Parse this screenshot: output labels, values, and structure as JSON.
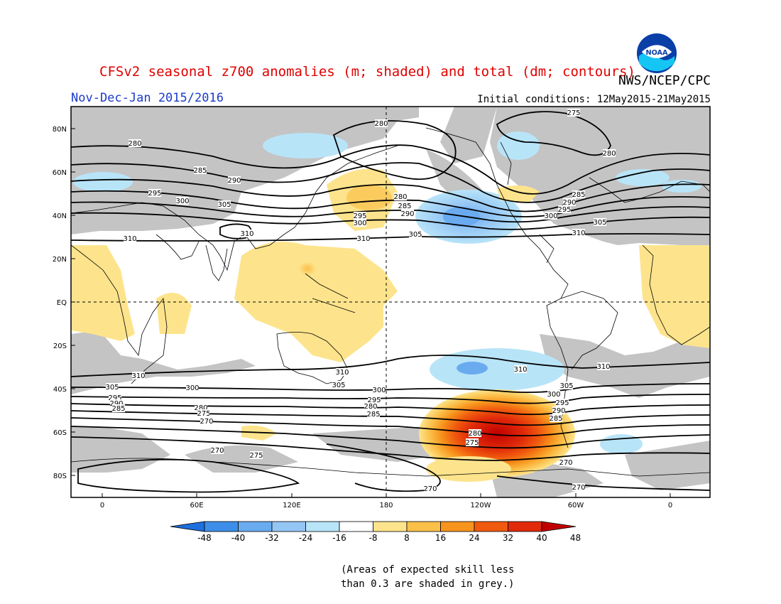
{
  "header": {
    "title": "CFSv2 seasonal z700 anomalies (m; shaded) and total (dm; contours)",
    "agency": "NWS/NCEP/CPC",
    "season": "Nov-Dec-Jan 2015/2016",
    "initial_conditions": "Initial conditions: 12May2015-21May2015",
    "logo_text": "NOAA"
  },
  "map": {
    "lat_ticks": [
      "80N",
      "60N",
      "40N",
      "20N",
      "EQ",
      "20S",
      "40S",
      "60S",
      "80S"
    ],
    "lon_ticks": [
      "0",
      "60E",
      "120E",
      "180",
      "120W",
      "60W",
      "0"
    ],
    "contour_values": [
      "280",
      "285",
      "290",
      "295",
      "300",
      "305",
      "310",
      "275",
      "270"
    ],
    "contour_labels": [
      {
        "id": "c280a",
        "text": "280"
      },
      {
        "id": "c275a",
        "text": "275"
      },
      {
        "id": "c280b",
        "text": "280"
      },
      {
        "id": "c280c",
        "text": "280"
      },
      {
        "id": "c285a",
        "text": "285"
      },
      {
        "id": "c290a",
        "text": "290"
      },
      {
        "id": "c295a",
        "text": "295"
      },
      {
        "id": "c300a",
        "text": "300"
      },
      {
        "id": "c305a",
        "text": "305"
      },
      {
        "id": "c310a",
        "text": "310"
      },
      {
        "id": "c280d",
        "text": "280"
      },
      {
        "id": "c285b",
        "text": "285"
      },
      {
        "id": "c290b",
        "text": "290"
      },
      {
        "id": "c295b",
        "text": "295"
      },
      {
        "id": "c300b",
        "text": "300"
      },
      {
        "id": "c305b",
        "text": "305"
      },
      {
        "id": "c310b",
        "text": "310"
      },
      {
        "id": "c310c",
        "text": "310"
      },
      {
        "id": "c285c",
        "text": "285"
      },
      {
        "id": "c290c",
        "text": "290"
      },
      {
        "id": "c295c",
        "text": "295"
      },
      {
        "id": "c300c",
        "text": "300"
      },
      {
        "id": "c305c",
        "text": "305"
      },
      {
        "id": "c310d",
        "text": "310"
      },
      {
        "id": "c310e",
        "text": "310"
      },
      {
        "id": "c310f",
        "text": "310"
      },
      {
        "id": "c310g",
        "text": "310"
      },
      {
        "id": "c310h",
        "text": "310"
      },
      {
        "id": "c305d",
        "text": "305"
      },
      {
        "id": "c300d",
        "text": "300"
      },
      {
        "id": "c295d",
        "text": "295"
      },
      {
        "id": "c290d",
        "text": "290"
      },
      {
        "id": "c285d",
        "text": "285"
      },
      {
        "id": "c280e",
        "text": "280"
      },
      {
        "id": "c275b",
        "text": "275"
      },
      {
        "id": "c270a",
        "text": "270"
      },
      {
        "id": "c305e",
        "text": "305"
      },
      {
        "id": "c300e",
        "text": "300"
      },
      {
        "id": "c295e",
        "text": "295"
      },
      {
        "id": "c290e",
        "text": "290"
      },
      {
        "id": "c285e",
        "text": "285"
      },
      {
        "id": "c280f",
        "text": "280"
      },
      {
        "id": "c305f",
        "text": "305"
      },
      {
        "id": "c300f",
        "text": "300"
      },
      {
        "id": "c295f",
        "text": "295"
      },
      {
        "id": "c290f",
        "text": "290"
      },
      {
        "id": "c285f",
        "text": "285"
      },
      {
        "id": "c280g",
        "text": "280"
      },
      {
        "id": "c275c",
        "text": "275"
      },
      {
        "id": "c270b",
        "text": "270"
      },
      {
        "id": "c275d",
        "text": "275"
      },
      {
        "id": "c270c",
        "text": "270"
      },
      {
        "id": "c270d",
        "text": "270"
      },
      {
        "id": "c270e",
        "text": "270"
      }
    ]
  },
  "colorbar": {
    "tick_labels": [
      "-48",
      "-40",
      "-32",
      "-24",
      "-16",
      "-8",
      "8",
      "16",
      "24",
      "32",
      "40",
      "48"
    ],
    "colors": [
      "#1f6fde",
      "#3d8ee8",
      "#6aabf0",
      "#94c6f5",
      "#b8e4f8",
      "#ffffff",
      "#fde48c",
      "#fbc04a",
      "#f7941d",
      "#f05a0e",
      "#e02a0a",
      "#c00000"
    ]
  },
  "note": {
    "line1": "(Areas of expected skill less",
    "line2": "than 0.3 are shaded in grey.)"
  }
}
